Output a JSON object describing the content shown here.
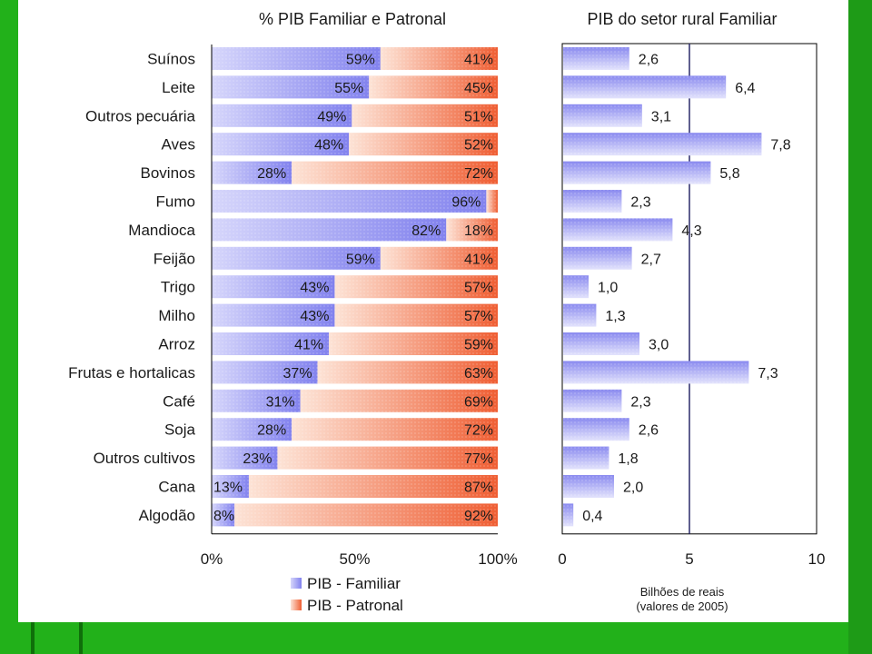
{
  "colors": {
    "background": "#22b11a",
    "panel": "#ffffff",
    "familiar": "#8d8df0",
    "familiar_light": "#d9d9fb",
    "patronal": "#f0683e",
    "patronal_light": "#fde0d2",
    "bar_right": "#9a9af2",
    "axis": "#000000"
  },
  "chart_data": [
    {
      "type": "bar",
      "orientation": "horizontal",
      "stacked": true,
      "title": "% PIB Familiar e Patronal",
      "categories": [
        "Suínos",
        "Leite",
        "Outros pecuária",
        "Aves",
        "Bovinos",
        "Fumo",
        "Mandioca",
        "Feijão",
        "Trigo",
        "Milho",
        "Arroz",
        "Frutas e hortalicas",
        "Café",
        "Soja",
        "Outros cultivos",
        "Cana",
        "Algodão"
      ],
      "series": [
        {
          "name": "PIB - Familiar",
          "values": [
            59,
            55,
            49,
            48,
            28,
            96,
            82,
            59,
            43,
            43,
            41,
            37,
            31,
            28,
            23,
            13,
            8
          ]
        },
        {
          "name": "PIB - Patronal",
          "values": [
            41,
            45,
            51,
            52,
            72,
            4,
            18,
            41,
            57,
            57,
            59,
            63,
            69,
            72,
            77,
            87,
            92
          ]
        }
      ],
      "data_labels_familiar": [
        "59%",
        "55%",
        "49%",
        "48%",
        "28%",
        "96%",
        "82%",
        "59%",
        "43%",
        "43%",
        "41%",
        "37%",
        "31%",
        "28%",
        "23%",
        "13%",
        "8%"
      ],
      "data_labels_patronal": [
        "41%",
        "45%",
        "51%",
        "52%",
        "72%",
        "",
        "18%",
        "41%",
        "57%",
        "57%",
        "59%",
        "63%",
        "69%",
        "72%",
        "77%",
        "87%",
        "92%"
      ],
      "xlim": [
        0,
        100
      ],
      "x_ticks": [
        "0%",
        "50%",
        "100%"
      ],
      "grid": false,
      "legend": {
        "placement": "bottom",
        "entries": [
          "PIB - Familiar",
          "PIB - Patronal"
        ]
      }
    },
    {
      "type": "bar",
      "orientation": "horizontal",
      "title": "PIB do setor rural Familiar",
      "categories": [
        "Suínos",
        "Leite",
        "Outros pecuária",
        "Aves",
        "Bovinos",
        "Fumo",
        "Mandioca",
        "Feijão",
        "Trigo",
        "Milho",
        "Arroz",
        "Frutas e hortalicas",
        "Café",
        "Soja",
        "Outros cultivos",
        "Cana",
        "Algodão"
      ],
      "values": [
        2.6,
        6.4,
        3.1,
        7.8,
        5.8,
        2.3,
        4.3,
        2.7,
        1.0,
        1.3,
        3.0,
        7.3,
        2.3,
        2.6,
        1.8,
        2.0,
        0.4
      ],
      "value_labels": [
        "2,6",
        "6,4",
        "3,1",
        "7,8",
        "5,8",
        "2,3",
        "4,3",
        "2,7",
        "1,0",
        "1,3",
        "3,0",
        "7,3",
        "2,3",
        "2,6",
        "1,8",
        "2,0",
        "0,4"
      ],
      "xlim": [
        0,
        10
      ],
      "x_ticks": [
        "0",
        "5",
        "10"
      ],
      "reference_line_at": 5,
      "xlabel_line1": "Bilhões de reais",
      "xlabel_line2": "(valores de 2005)",
      "grid": false
    }
  ]
}
